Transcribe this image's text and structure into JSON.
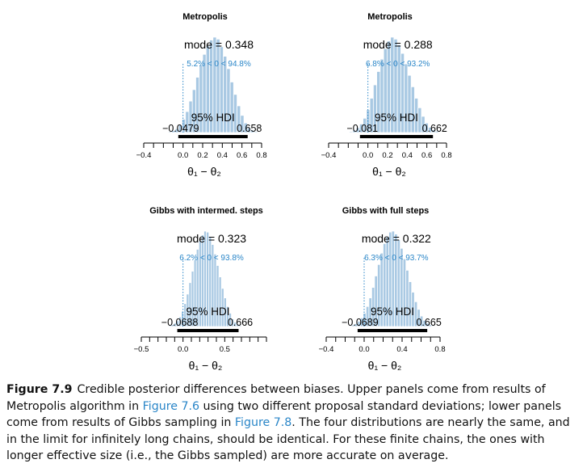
{
  "colors": {
    "bar": "#a9c9e3",
    "bar_edge": "#ffffff",
    "pct_text": "#2a86c8",
    "axis": "#000000",
    "hdi_line": "#000000"
  },
  "chart_data": [
    {
      "type": "bar",
      "title": "Metropolis",
      "xlabel": "θ₁ − θ₂",
      "mode_text": "mode = 0.348",
      "pct_text": "5.2% < 0 < 94.8%",
      "hdi_text": "95% HDI",
      "hdi_low_text": "−0.0479",
      "hdi_high_text": "0.658",
      "hdi": [
        -0.0479,
        0.658
      ],
      "mode": 0.348,
      "xlim": [
        -0.4,
        0.8
      ],
      "xticks": [
        -0.4,
        0.0,
        0.2,
        0.4,
        0.6,
        0.8
      ],
      "xtick_labels": [
        "−0.4",
        "0.0",
        "0.2",
        "0.4",
        "0.6",
        "0.8"
      ],
      "minor_ticks": [
        -0.4,
        -0.3,
        -0.2,
        -0.1,
        0.0,
        0.1,
        0.2,
        0.3,
        0.4,
        0.5,
        0.6,
        0.7,
        0.8
      ],
      "hist": {
        "start": -0.15,
        "width": 0.035,
        "values": [
          0.01,
          0.02,
          0.04,
          0.08,
          0.14,
          0.22,
          0.33,
          0.45,
          0.58,
          0.71,
          0.82,
          0.91,
          0.97,
          1.0,
          0.98,
          0.9,
          0.8,
          0.67,
          0.53,
          0.4,
          0.28,
          0.18,
          0.1,
          0.05,
          0.025,
          0.01
        ]
      }
    },
    {
      "type": "bar",
      "title": "Metropolis",
      "xlabel": "θ₁ − θ₂",
      "mode_text": "mode = 0.288",
      "pct_text": "6.8% < 0 < 93.2%",
      "hdi_text": "95% HDI",
      "hdi_low_text": "−0.081",
      "hdi_high_text": "0.662",
      "hdi": [
        -0.081,
        0.662
      ],
      "mode": 0.288,
      "xlim": [
        -0.4,
        0.8
      ],
      "xticks": [
        -0.4,
        0.0,
        0.2,
        0.4,
        0.6,
        0.8
      ],
      "xtick_labels": [
        "−0.4",
        "0.0",
        "0.2",
        "0.4",
        "0.6",
        "0.8"
      ],
      "minor_ticks": [
        -0.4,
        -0.3,
        -0.2,
        -0.1,
        0.0,
        0.1,
        0.2,
        0.3,
        0.4,
        0.5,
        0.6,
        0.7,
        0.8
      ],
      "hist": {
        "start": -0.19,
        "width": 0.035,
        "values": [
          0.01,
          0.025,
          0.05,
          0.09,
          0.15,
          0.24,
          0.36,
          0.5,
          0.64,
          0.77,
          0.88,
          0.96,
          1.0,
          0.98,
          0.92,
          0.83,
          0.72,
          0.6,
          0.48,
          0.36,
          0.26,
          0.17,
          0.1,
          0.055,
          0.03,
          0.015,
          0.005
        ]
      }
    },
    {
      "type": "bar",
      "title": "Gibbs with intermed. steps",
      "xlabel": "θ₁ − θ₂",
      "mode_text": "mode = 0.323",
      "pct_text": "6.2% < 0 < 93.8%",
      "hdi_text": "95% HDI",
      "hdi_low_text": "−0.0688",
      "hdi_high_text": "0.666",
      "hdi": [
        -0.0688,
        0.666
      ],
      "mode": 0.323,
      "xlim": [
        -0.5,
        1.0
      ],
      "xticks": [
        -0.5,
        0.0,
        0.5
      ],
      "xtick_labels": [
        "−0.5",
        "0.0",
        "0.5"
      ],
      "minor_ticks": [
        -0.5,
        -0.4,
        -0.3,
        -0.2,
        -0.1,
        0.0,
        0.1,
        0.2,
        0.3,
        0.4,
        0.5,
        0.6,
        0.7,
        0.8,
        0.9,
        1.0
      ],
      "hist": {
        "start": -0.2,
        "width": 0.03,
        "values": [
          0.005,
          0.01,
          0.02,
          0.035,
          0.06,
          0.1,
          0.16,
          0.24,
          0.34,
          0.46,
          0.58,
          0.7,
          0.81,
          0.9,
          0.96,
          1.0,
          0.99,
          0.94,
          0.86,
          0.76,
          0.64,
          0.52,
          0.4,
          0.3,
          0.21,
          0.14,
          0.08,
          0.045,
          0.025,
          0.012,
          0.005
        ]
      }
    },
    {
      "type": "bar",
      "title": "Gibbs with full steps",
      "xlabel": "θ₁ − θ₂",
      "mode_text": "mode = 0.322",
      "pct_text": "6.3% < 0 < 93.7%",
      "hdi_text": "95% HDI",
      "hdi_low_text": "−0.0689",
      "hdi_high_text": "0.665",
      "hdi": [
        -0.0689,
        0.665
      ],
      "mode": 0.322,
      "xlim": [
        -0.4,
        0.8
      ],
      "xticks": [
        -0.4,
        0.0,
        0.4,
        0.8
      ],
      "xtick_labels": [
        "−0.4",
        "0.0",
        "0.4",
        "0.8"
      ],
      "minor_ticks": [
        -0.4,
        -0.3,
        -0.2,
        -0.1,
        0.0,
        0.1,
        0.2,
        0.3,
        0.4,
        0.5,
        0.6,
        0.7,
        0.8
      ],
      "hist": {
        "start": -0.16,
        "width": 0.03,
        "values": [
          0.008,
          0.016,
          0.03,
          0.055,
          0.09,
          0.14,
          0.21,
          0.3,
          0.41,
          0.53,
          0.65,
          0.77,
          0.87,
          0.94,
          0.99,
          1.0,
          0.97,
          0.91,
          0.82,
          0.71,
          0.59,
          0.47,
          0.36,
          0.26,
          0.18,
          0.11,
          0.065,
          0.035,
          0.018,
          0.008
        ]
      }
    }
  ],
  "caption": {
    "label": "Figure 7.9",
    "part1": "Credible posterior differences between biases. Upper panels come from results of Metropolis algorithm in ",
    "ref1": "Figure 7.6",
    "part2": " using two different proposal standard deviations; lower panels come from results of Gibbs sampling in ",
    "ref2": "Figure 7.8",
    "part3": ". The four distributions are nearly the same, and in the limit for infinitely long chains, should be identical. For these finite chains, the ones with longer effective size (i.e., the Gibbs sampled) are more accurate on average."
  }
}
